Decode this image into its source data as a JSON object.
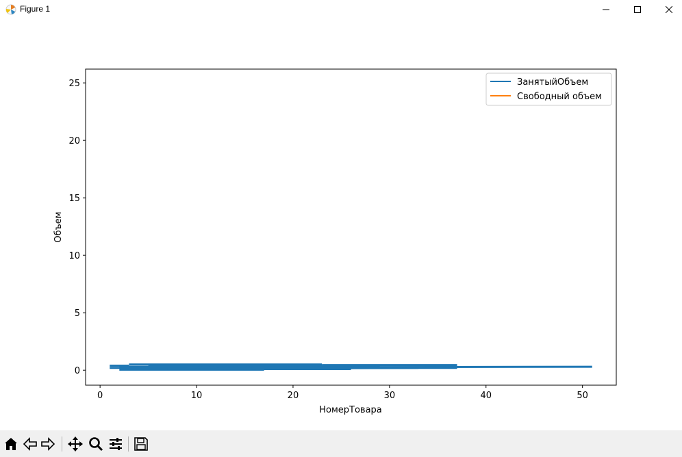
{
  "window": {
    "title": "Figure 1"
  },
  "toolbar": {
    "buttons": [
      {
        "name": "home-icon"
      },
      {
        "name": "back-arrow-icon"
      },
      {
        "name": "forward-arrow-icon"
      },
      {
        "name": "pan-icon"
      },
      {
        "name": "zoom-icon"
      },
      {
        "name": "configure-subplots-icon"
      },
      {
        "name": "save-icon"
      }
    ]
  },
  "chart_data": {
    "type": "line",
    "title": "",
    "xlabel": "НомерТовара",
    "ylabel": "Объем",
    "xlim": [
      -1.5,
      53.5
    ],
    "ylim": [
      -1.3,
      26.2
    ],
    "xticks": [
      0,
      10,
      20,
      30,
      40,
      50
    ],
    "yticks": [
      0,
      5,
      10,
      15,
      20,
      25
    ],
    "legend_position": "top-right",
    "grid": false,
    "series": [
      {
        "name": "ЗанятыйОбъем",
        "color": "#1f77b4",
        "segments": [
          [
            [
              1,
              0.4
            ],
            [
              3,
              0.4
            ]
          ],
          [
            [
              1,
              0.2
            ],
            [
              37,
              0.2
            ]
          ],
          [
            [
              3,
              0.5
            ],
            [
              23,
              0.5
            ]
          ],
          [
            [
              2,
              0.05
            ],
            [
              17,
              0.05
            ]
          ],
          [
            [
              2,
              0.3
            ],
            [
              19,
              0.3
            ]
          ],
          [
            [
              5,
              0.35
            ],
            [
              29,
              0.35
            ]
          ],
          [
            [
              7,
              0.1
            ],
            [
              26,
              0.1
            ]
          ],
          [
            [
              9,
              0.25
            ],
            [
              51,
              0.3
            ]
          ],
          [
            [
              23,
              0.45
            ],
            [
              37,
              0.45
            ]
          ],
          [
            [
              12,
              0.15
            ],
            [
              33,
              0.2
            ]
          ]
        ]
      },
      {
        "name": "Свободный объем",
        "color": "#ff7f0e",
        "segments": []
      }
    ]
  }
}
